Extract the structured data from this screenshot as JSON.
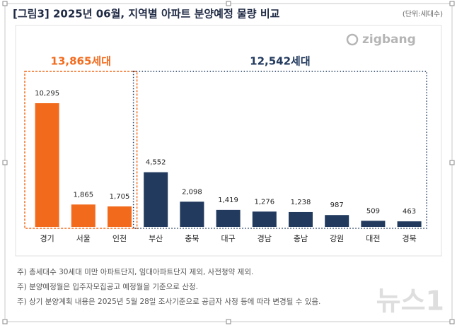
{
  "chart_data": {
    "type": "bar",
    "title": "[그림3] 2025년 06월, 지역별 아파트 분양예정 물량 비교",
    "unit": "(단위:세대수)",
    "source": "zigbang",
    "categories": [
      "경기",
      "서울",
      "인천",
      "부산",
      "충북",
      "대구",
      "경남",
      "충남",
      "강원",
      "대전",
      "경북"
    ],
    "values": [
      10295,
      1865,
      1705,
      4552,
      2098,
      1419,
      1276,
      1238,
      987,
      509,
      463
    ],
    "value_labels": [
      "10,295",
      "1,865",
      "1,705",
      "4,552",
      "2,098",
      "1,419",
      "1,276",
      "1,238",
      "987",
      "509",
      "463"
    ],
    "colors": [
      "#f26b1d",
      "#f26b1d",
      "#f26b1d",
      "#223a5e",
      "#223a5e",
      "#223a5e",
      "#223a5e",
      "#223a5e",
      "#223a5e",
      "#223a5e",
      "#223a5e"
    ],
    "annotations": [
      "13,865세대",
      "12,542세대"
    ],
    "notes": [
      "주) 총세대수 30세대 미만 아파트단지, 임대아파트단지 제외, 사전청약 제외.",
      "주) 분양예정월은 입주자모집공고 예정월을 기준으로 산정.",
      "주) 상기 분양계획 내용은 2025년 5월  28일  조사기준으로 공급자 사정 등에 따라 변경될 수 있음."
    ]
  },
  "watermark": "뉴스1"
}
